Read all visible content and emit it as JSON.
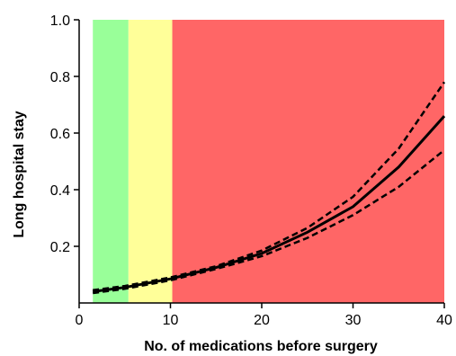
{
  "chart_data": {
    "type": "line",
    "title": "",
    "xlabel": "No. of medications before surgery",
    "ylabel": "Long hospital stay",
    "xlim": [
      0,
      40
    ],
    "ylim": [
      0,
      1.0
    ],
    "x_ticks": [
      0,
      10,
      20,
      30,
      40
    ],
    "x_tick_labels": [
      "0",
      "10",
      "20",
      "30",
      "40"
    ],
    "y_ticks": [
      0.2,
      0.4,
      0.6,
      0.8,
      1.0
    ],
    "y_tick_labels": [
      "0.2",
      "0.4",
      "0.6",
      "0.8",
      "1.0"
    ],
    "grid": false,
    "legend": "none",
    "bands": [
      {
        "x_start": 1.5,
        "x_end": 5.4,
        "color": "#99ff99"
      },
      {
        "x_start": 5.4,
        "x_end": 10.2,
        "color": "#ffff99"
      },
      {
        "x_start": 10.2,
        "x_end": 40.3,
        "color": "#ff6666"
      }
    ],
    "series": [
      {
        "style": "solid",
        "color": "#000000",
        "x": [
          1.5,
          5,
          10,
          15,
          20,
          25,
          30,
          35,
          40
        ],
        "y": [
          0.04,
          0.055,
          0.085,
          0.125,
          0.175,
          0.25,
          0.34,
          0.48,
          0.66
        ]
      },
      {
        "style": "dashed",
        "color": "#000000",
        "x": [
          1.5,
          5,
          10,
          15,
          20,
          25,
          30,
          35,
          40
        ],
        "y": [
          0.045,
          0.06,
          0.09,
          0.13,
          0.185,
          0.265,
          0.375,
          0.545,
          0.78
        ]
      },
      {
        "style": "dashed",
        "color": "#000000",
        "x": [
          1.5,
          5,
          10,
          15,
          20,
          25,
          30,
          35,
          40
        ],
        "y": [
          0.035,
          0.05,
          0.08,
          0.12,
          0.165,
          0.23,
          0.31,
          0.41,
          0.54
        ]
      }
    ]
  }
}
